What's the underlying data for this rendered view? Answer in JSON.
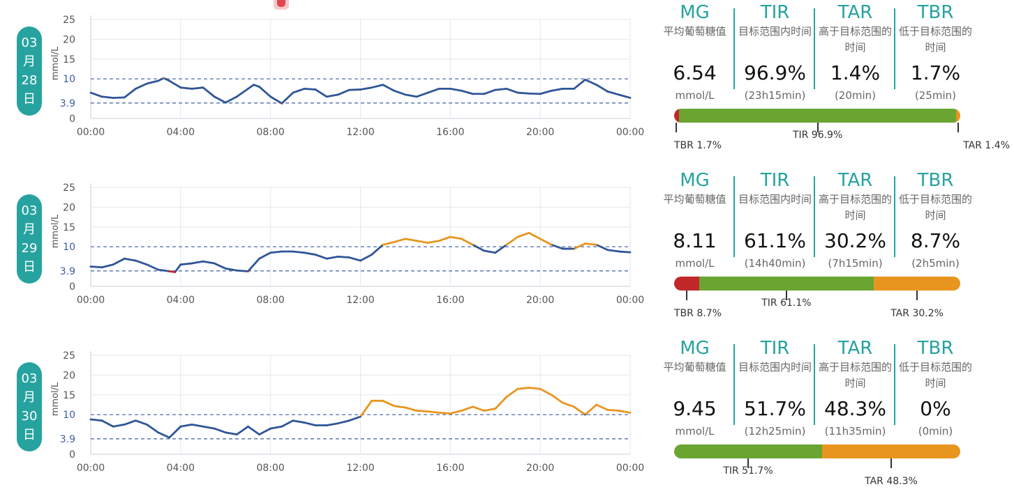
{
  "colors": {
    "accent": "#26a39f",
    "normal": "#2f5597",
    "high": "#e8951f",
    "low": "#c0282a",
    "tir_bar": "#6aa532",
    "tar_bar": "#e8951f",
    "tbr_bar": "#c0282a",
    "threshold": "#3d5fa3"
  },
  "header_icon": "notification-icon",
  "chart_axes": {
    "ylabel": "mmol/L",
    "yticks": [
      "25",
      "20",
      "15",
      "10",
      "3.9",
      "0"
    ],
    "xticks": [
      "00:00",
      "04:00",
      "08:00",
      "12:00",
      "16:00",
      "20:00",
      "00:00"
    ]
  },
  "labels": {
    "mg_code": "MG",
    "mg_desc": "平均葡萄糖值",
    "tir_code": "TIR",
    "tir_desc": "目标范围内时间",
    "tar_code": "TAR",
    "tar_desc": "高于目标范围的时间",
    "tbr_code": "TBR",
    "tbr_desc": "低于目标范围的时间"
  },
  "days": [
    {
      "date_month": "03",
      "date_month_unit": "月",
      "date_day": "28",
      "date_day_unit": "日",
      "mg": "6.54",
      "mg_unit": "mmol/L",
      "tir": "96.9%",
      "tir_time": "(23h15min)",
      "tar": "1.4%",
      "tar_time": "(20min)",
      "tbr": "1.7%",
      "tbr_time": "(25min)",
      "bar": {
        "tbr_pct": 1.7,
        "tir_pct": 96.9,
        "tar_pct": 1.4
      },
      "bar_labels": {
        "tbr": "TBR 1.7%",
        "tir": "TIR 96.9%",
        "tar": "TAR 1.4%"
      }
    },
    {
      "date_month": "03",
      "date_month_unit": "月",
      "date_day": "29",
      "date_day_unit": "日",
      "mg": "8.11",
      "mg_unit": "mmol/L",
      "tir": "61.1%",
      "tir_time": "(14h40min)",
      "tar": "30.2%",
      "tar_time": "(7h15min)",
      "tbr": "8.7%",
      "tbr_time": "(2h5min)",
      "bar": {
        "tbr_pct": 8.7,
        "tir_pct": 61.1,
        "tar_pct": 30.2
      },
      "bar_labels": {
        "tbr": "TBR 8.7%",
        "tir": "TIR 61.1%",
        "tar": "TAR 30.2%"
      }
    },
    {
      "date_month": "03",
      "date_month_unit": "月",
      "date_day": "30",
      "date_day_unit": "日",
      "mg": "9.45",
      "mg_unit": "mmol/L",
      "tir": "51.7%",
      "tir_time": "(12h25min)",
      "tar": "48.3%",
      "tar_time": "(11h35min)",
      "tbr": "0%",
      "tbr_time": "(0min)",
      "bar": {
        "tbr_pct": 0,
        "tir_pct": 51.7,
        "tar_pct": 48.3
      },
      "bar_labels": {
        "tbr": "",
        "tir": "TIR 51.7%",
        "tar": "TAR 48.3%"
      }
    }
  ],
  "chart_data": [
    {
      "type": "line",
      "ylabel": "mmol/L",
      "ylim": [
        0,
        25
      ],
      "thresholds": [
        3.9,
        10
      ],
      "x_unit": "hours",
      "x": [
        0,
        0.5,
        1,
        1.5,
        2,
        2.5,
        3,
        3.25,
        3.5,
        4,
        4.5,
        5,
        5.5,
        6,
        6.5,
        7,
        7.25,
        7.5,
        8,
        8.5,
        9,
        9.5,
        10,
        10.5,
        11,
        11.5,
        12,
        12.5,
        13,
        13.5,
        14,
        14.5,
        15,
        15.5,
        16,
        16.5,
        17,
        17.5,
        18,
        18.5,
        19,
        19.5,
        20,
        20.5,
        21,
        21.5,
        22,
        22.5,
        23,
        23.5,
        24
      ],
      "y": [
        6.5,
        5.5,
        5.2,
        5.3,
        7.5,
        8.8,
        9.5,
        10.2,
        9.5,
        7.8,
        7.5,
        7.8,
        5.5,
        4.0,
        5.5,
        7.5,
        8.5,
        8.0,
        5.5,
        3.8,
        6.5,
        7.5,
        7.3,
        5.5,
        6.0,
        7.2,
        7.3,
        7.8,
        8.5,
        7.0,
        6.0,
        5.5,
        6.5,
        7.5,
        7.5,
        7.0,
        6.2,
        6.2,
        7.2,
        7.5,
        6.5,
        6.3,
        6.2,
        7.0,
        7.5,
        7.5,
        9.8,
        8.5,
        6.8,
        6.0,
        5.2
      ]
    },
    {
      "type": "line",
      "ylabel": "mmol/L",
      "ylim": [
        0,
        25
      ],
      "thresholds": [
        3.9,
        10
      ],
      "x_unit": "hours",
      "x": [
        0,
        0.5,
        1,
        1.5,
        2,
        2.5,
        3,
        3.5,
        3.75,
        4,
        4.5,
        5,
        5.5,
        6,
        6.5,
        7,
        7.5,
        8,
        8.5,
        9,
        9.5,
        10,
        10.5,
        11,
        11.5,
        12,
        12.5,
        13,
        13.5,
        14,
        14.5,
        15,
        15.5,
        16,
        16.5,
        17,
        17.5,
        18,
        18.5,
        19,
        19.5,
        20,
        20.5,
        21,
        21.5,
        22,
        22.5,
        23,
        23.5,
        24
      ],
      "y": [
        5.0,
        4.8,
        5.5,
        7.0,
        6.5,
        5.5,
        4.2,
        3.8,
        3.6,
        5.5,
        5.8,
        6.3,
        5.8,
        4.5,
        4.0,
        3.8,
        7.0,
        8.5,
        8.8,
        8.8,
        8.5,
        8.0,
        7.0,
        7.5,
        7.3,
        6.5,
        8.0,
        10.5,
        11.2,
        12.0,
        11.5,
        11.0,
        11.5,
        12.5,
        12.0,
        10.5,
        9.0,
        8.5,
        10.5,
        12.5,
        13.5,
        12.0,
        10.5,
        9.5,
        9.5,
        10.8,
        10.5,
        9.2,
        8.8,
        8.6
      ]
    },
    {
      "type": "line",
      "ylabel": "mmol/L",
      "ylim": [
        0,
        25
      ],
      "thresholds": [
        3.9,
        10
      ],
      "x_unit": "hours",
      "x": [
        0,
        0.5,
        1,
        1.5,
        2,
        2.5,
        3,
        3.5,
        4,
        4.5,
        5,
        5.5,
        6,
        6.5,
        7,
        7.5,
        8,
        8.5,
        9,
        9.5,
        10,
        10.5,
        11,
        11.5,
        12,
        12.5,
        13,
        13.5,
        14,
        14.5,
        15,
        15.5,
        16,
        16.5,
        17,
        17.5,
        18,
        18.5,
        19,
        19.5,
        20,
        20.5,
        21,
        21.5,
        22,
        22.5,
        23,
        23.5,
        24
      ],
      "y": [
        8.8,
        8.5,
        7.0,
        7.5,
        8.5,
        7.5,
        5.5,
        4.2,
        7.0,
        7.5,
        7.0,
        6.5,
        5.5,
        5.0,
        7.0,
        5.0,
        6.5,
        7.0,
        8.5,
        8.0,
        7.3,
        7.3,
        7.8,
        8.5,
        9.5,
        13.5,
        13.5,
        12.2,
        11.8,
        11.0,
        10.8,
        10.5,
        10.3,
        11.0,
        12.0,
        11.0,
        11.5,
        14.5,
        16.5,
        16.8,
        16.5,
        15.0,
        13.0,
        12.0,
        10.0,
        12.5,
        11.2,
        11.0,
        10.5
      ]
    }
  ]
}
